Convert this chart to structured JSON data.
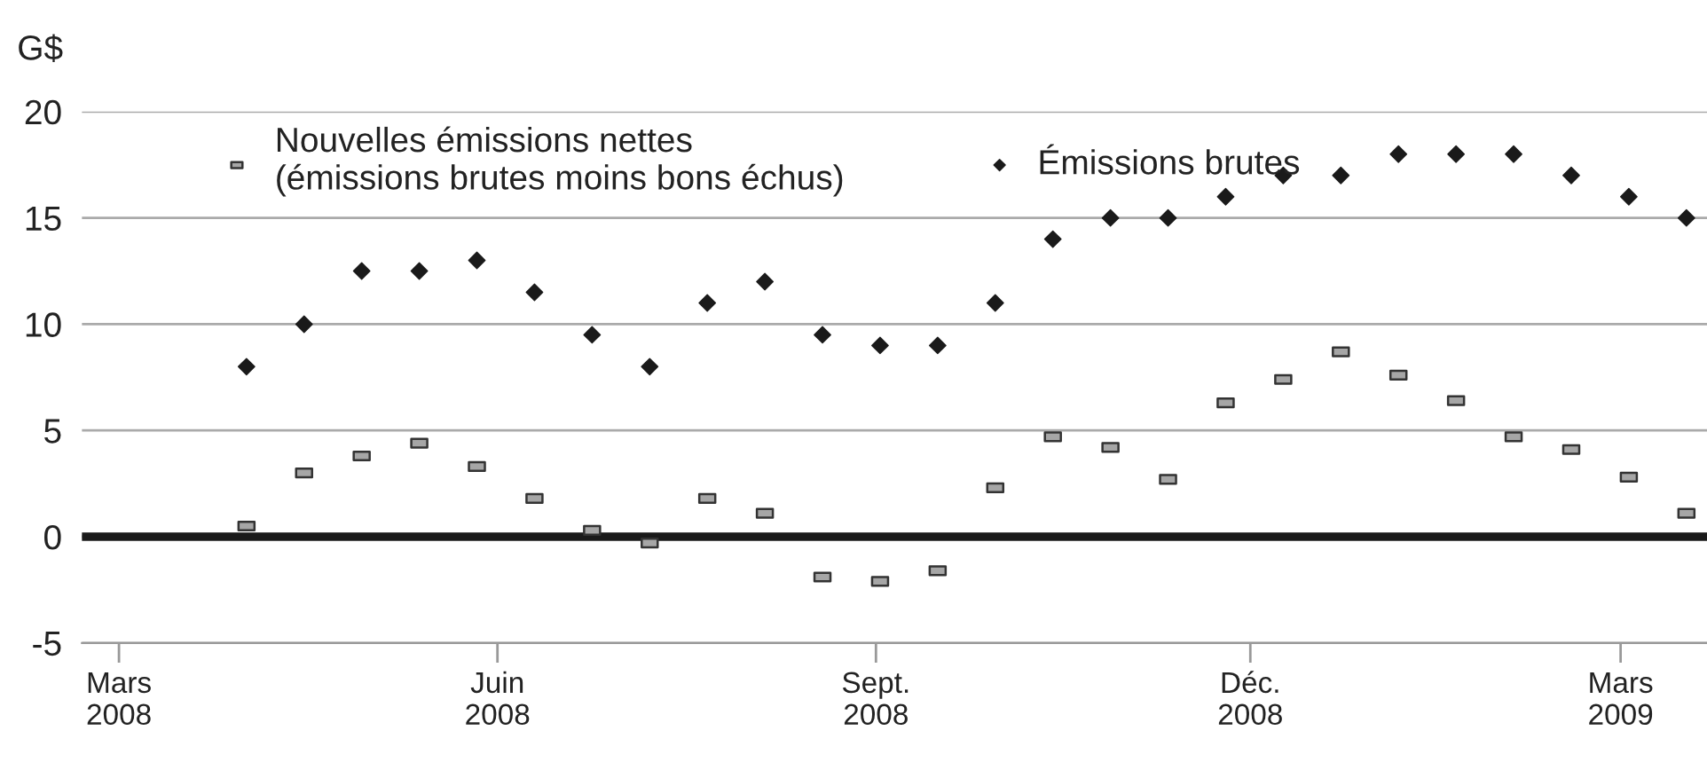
{
  "chart_data": {
    "type": "scatter",
    "ylabel": "G$",
    "x": [
      "2008-04-01",
      "2008-04-15",
      "2008-04-29",
      "2008-05-13",
      "2008-05-27",
      "2008-06-10",
      "2008-06-24",
      "2008-07-08",
      "2008-07-22",
      "2008-08-05",
      "2008-08-19",
      "2008-09-02",
      "2008-09-16",
      "2008-09-30",
      "2008-10-14",
      "2008-10-28",
      "2008-11-11",
      "2008-11-25",
      "2008-12-09",
      "2008-12-23",
      "2009-01-06",
      "2009-01-20",
      "2009-02-03",
      "2009-02-17",
      "2009-03-03",
      "2009-03-17"
    ],
    "series": [
      {
        "name": "Nouvelles émissions nettes\n(émissions brutes moins bons échus)",
        "color": "#a6a6a6",
        "marker": "square",
        "values": [
          0.5,
          3.0,
          3.8,
          4.4,
          3.3,
          1.8,
          0.3,
          -0.3,
          1.8,
          1.1,
          -1.9,
          -2.1,
          -1.6,
          2.3,
          4.7,
          4.2,
          2.7,
          6.3,
          7.4,
          8.7,
          7.6,
          6.4,
          4.7,
          4.1,
          2.8,
          1.1
        ]
      },
      {
        "name": "Émissions brutes",
        "color": "#1a1a1a",
        "marker": "diamond",
        "values": [
          8,
          10,
          12.5,
          12.5,
          13,
          11.5,
          9.5,
          8,
          11,
          12,
          9.5,
          9,
          9,
          11,
          14,
          15,
          15,
          16,
          17,
          17,
          18,
          18,
          18,
          17,
          16,
          15
        ]
      }
    ],
    "xlim": [
      "2008-02-21",
      "2009-03-22"
    ],
    "xticks": [
      {
        "value": "2008-03-01",
        "label": "Mars\n2008"
      },
      {
        "value": "2008-06-01",
        "label": "Juin\n2008"
      },
      {
        "value": "2008-09-01",
        "label": "Sept.\n2008"
      },
      {
        "value": "2008-12-01",
        "label": "Déc.\n2008"
      },
      {
        "value": "2009-03-01",
        "label": "Mars\n2009"
      }
    ],
    "ylim": [
      -5,
      20
    ],
    "yticks": [
      -5,
      0,
      5,
      10,
      15,
      20
    ],
    "ref_lines": [
      {
        "axis": "y",
        "value": 0,
        "color": "#1a1a1a"
      }
    ],
    "grid": "y",
    "legend": "top left"
  }
}
